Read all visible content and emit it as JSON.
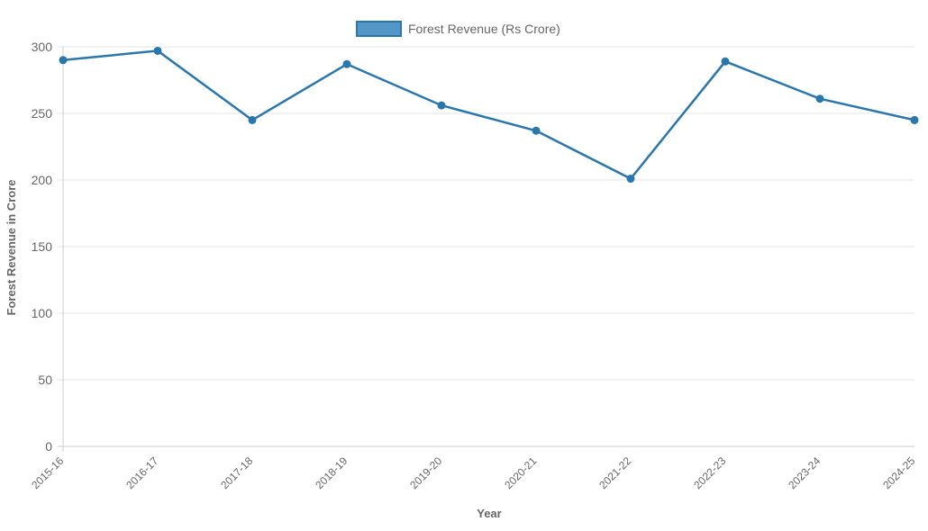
{
  "chart_data": {
    "type": "line",
    "categories": [
      "2015-16",
      "2016-17",
      "2017-18",
      "2018-19",
      "2019-20",
      "2020-21",
      "2021-22",
      "2022-23",
      "2023-24",
      "2024-25"
    ],
    "series": [
      {
        "name": "Forest Revenue (Rs Crore)",
        "values": [
          290,
          297,
          245,
          287,
          256,
          237,
          201,
          289,
          261,
          245
        ]
      }
    ],
    "xlabel": "Year",
    "ylabel": "Forest Revenue in Crore",
    "ylim": [
      0,
      300
    ],
    "yticks": [
      0,
      50,
      100,
      150,
      200,
      250,
      300
    ],
    "grid": true,
    "legend": "top-center",
    "colors": {
      "line": "#2a77ad",
      "fill": "#5596c9"
    }
  }
}
